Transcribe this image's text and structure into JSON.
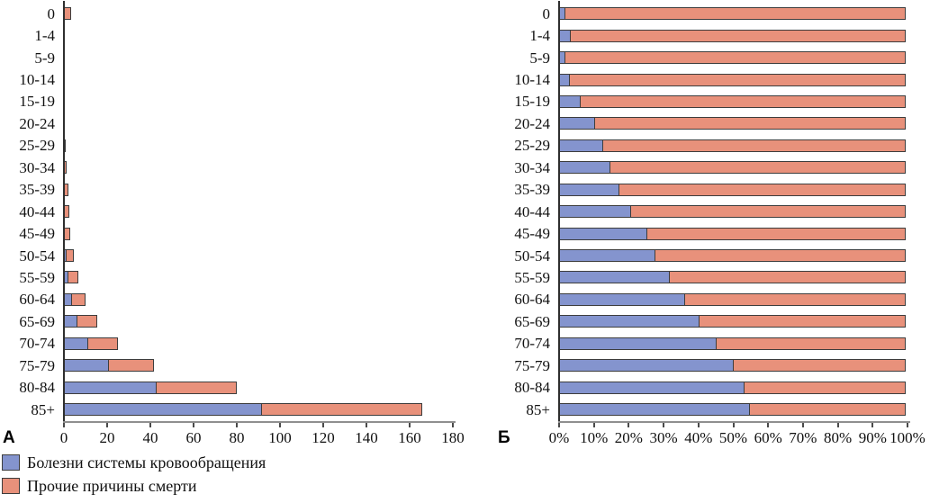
{
  "chart_data": [
    {
      "type": "bar",
      "orientation": "horizontal",
      "stacked": true,
      "label": "А",
      "title": "",
      "xlabel": "",
      "ylabel": "",
      "unit": "absolute count",
      "xlim": [
        0,
        180
      ],
      "xticks": [
        0,
        20,
        40,
        60,
        80,
        100,
        120,
        140,
        160,
        180
      ],
      "xtick_labels": [
        "0",
        "20",
        "40",
        "60",
        "80",
        "100",
        "120",
        "140",
        "160",
        "180"
      ],
      "tick_suffix": "",
      "grid": false,
      "categories": [
        "0",
        "1-4",
        "5-9",
        "10-14",
        "15-19",
        "20-24",
        "25-29",
        "30-34",
        "35-39",
        "40-44",
        "45-49",
        "50-54",
        "55-59",
        "60-64",
        "65-69",
        "70-74",
        "75-79",
        "80-84",
        "85+"
      ],
      "series": [
        {
          "key": "circulatory",
          "name": "Болезни системы кровообращения",
          "color": "#8494CE",
          "values": [
            0.1,
            0.01,
            0.01,
            0.01,
            0.03,
            0.08,
            0.2,
            0.3,
            0.4,
            0.6,
            1.0,
            1.5,
            2.3,
            4.0,
            6.6,
            11.8,
            21.3,
            43.3,
            92.0
          ]
        },
        {
          "key": "other",
          "name": "Прочие причины смерти",
          "color": "#E8917B",
          "values": [
            3.6,
            0.3,
            0.3,
            0.3,
            0.45,
            0.7,
            1.2,
            1.4,
            2.0,
            2.3,
            2.9,
            3.8,
            5.0,
            6.9,
            9.6,
            14.2,
            21.0,
            37.7,
            74.5
          ]
        }
      ]
    },
    {
      "type": "bar",
      "orientation": "horizontal",
      "stacked": true,
      "label": "Б",
      "title": "",
      "xlabel": "",
      "ylabel": "",
      "unit": "percent",
      "xlim": [
        0,
        100
      ],
      "xticks": [
        0,
        10,
        20,
        30,
        40,
        50,
        60,
        70,
        80,
        90,
        100
      ],
      "xtick_labels": [
        "0%",
        "10%",
        "20%",
        "30%",
        "40%",
        "50%",
        "60%",
        "70%",
        "80%",
        "90%",
        "100%"
      ],
      "tick_suffix": "%",
      "grid": false,
      "categories": [
        "0",
        "1-4",
        "5-9",
        "10-14",
        "15-19",
        "20-24",
        "25-29",
        "30-34",
        "35-39",
        "40-44",
        "45-49",
        "50-54",
        "55-59",
        "60-64",
        "65-69",
        "70-74",
        "75-79",
        "80-84",
        "85+"
      ],
      "series": [
        {
          "key": "circulatory",
          "name": "Болезни системы кровообращения",
          "color": "#8494CE",
          "values": [
            2,
            3.5,
            2,
            3.3,
            6.5,
            10.5,
            13,
            15,
            17.5,
            21,
            25.5,
            28,
            32,
            36.5,
            40.5,
            45.5,
            50.5,
            53.5,
            55
          ]
        },
        {
          "key": "other",
          "name": "Прочие причины смерти",
          "color": "#E8917B",
          "values": [
            98,
            96.5,
            98,
            96.7,
            93.5,
            89.5,
            87,
            85,
            82.5,
            79,
            74.5,
            72,
            68,
            63.5,
            59.5,
            54.5,
            49.5,
            46.5,
            45
          ]
        }
      ]
    }
  ],
  "legend": {
    "items": [
      {
        "label": "Болезни системы кровообращения",
        "color": "#8494CE"
      },
      {
        "label": "Прочие причины смерти",
        "color": "#E8917B"
      }
    ]
  },
  "colors": {
    "circulatory": "#8494CE",
    "other": "#E8917B",
    "bar_border": "#3d3d3d",
    "axis": "#8f8f8f",
    "text": "#111111"
  }
}
